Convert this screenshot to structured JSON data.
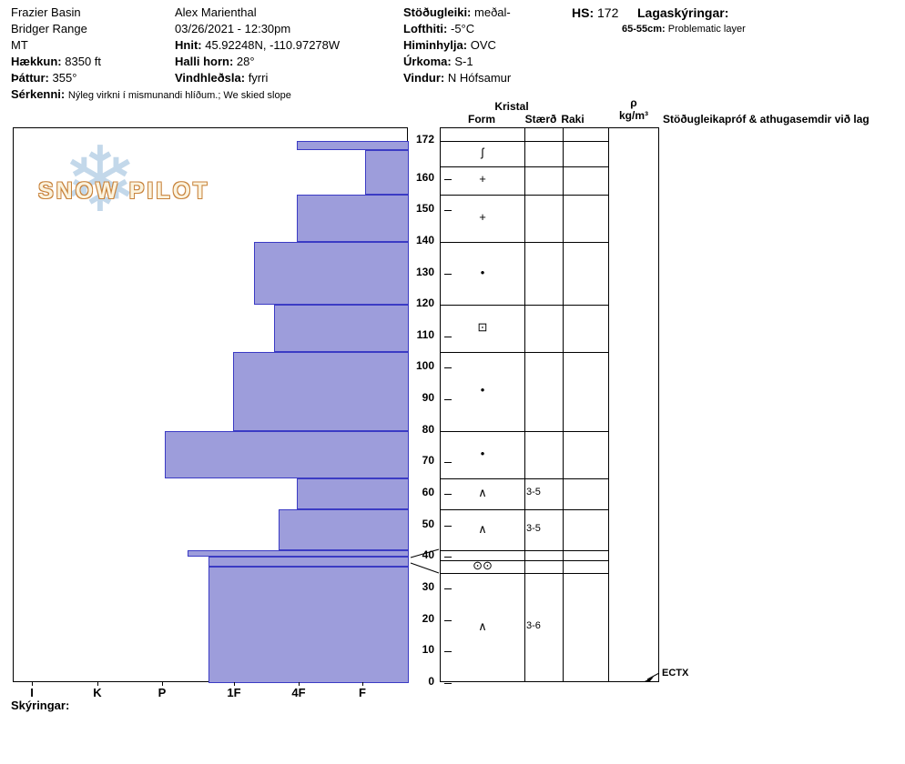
{
  "header": {
    "col1": {
      "site": "Frazier Basin",
      "range": "Bridger Range",
      "state": "MT",
      "elevation_label": "Hækkun:",
      "elevation_value": "8350 ft",
      "aspect_label": "Þáttur:",
      "aspect_value": "355°",
      "notes_label": "Sérkenni:",
      "notes_value": "Nýleg virkni í mismunandi hlíðum.; We skied slope"
    },
    "col2": {
      "observer": "Alex Marienthal",
      "datetime": "03/26/2021 - 12:30pm",
      "coords_label": "Hnit:",
      "coords_value": "45.92248N, -110.97278W",
      "slope_label": "Halli horn:",
      "slope_value": "28°",
      "windloading_label": "Vindhleðsla:",
      "windloading_value": "fyrri"
    },
    "col3": {
      "stability_label": "Stöðugleiki:",
      "stability_value": "meðal-",
      "airtemp_label": "Lofthiti:",
      "airtemp_value": "-5°C",
      "sky_label": "Himinhylja:",
      "sky_value": "OVC",
      "precip_label": "Úrkoma:",
      "precip_value": "S-1",
      "wind_label": "Vindur:",
      "wind_value": "N Hófsamur"
    },
    "hs_label": "HS:",
    "hs_value": "172",
    "layer_notes_label": "Lagaskýringar:",
    "layer_note_depth": "65-55cm:",
    "layer_note_text": "Problematic layer"
  },
  "logo": {
    "text": "SNOW PILOT",
    "flake": "❄"
  },
  "axis": {
    "hardness_labels": [
      "I",
      "K",
      "P",
      "1F",
      "4F",
      "F"
    ],
    "depth_labels": [
      172,
      160,
      150,
      140,
      130,
      120,
      110,
      100,
      90,
      80,
      70,
      60,
      50,
      40,
      30,
      20,
      10,
      0
    ]
  },
  "table": {
    "kristal_header": "Kristal",
    "form_header": "Form",
    "size_header": "Stærð",
    "raki_header": "Raki",
    "density_header_1": "ρ",
    "density_header_2": "kg/m³",
    "comments_header": "Stöðugleikapróf & athugasemdir við lag",
    "test_label": "ECTX"
  },
  "footer": {
    "legend_label": "Skýringar:"
  },
  "chart_data": {
    "type": "snow-profile",
    "title": "Snow pit hardness profile, Frazier Basin 03/26/2021",
    "total_depth_cm": 172,
    "hardness_scale": [
      "I",
      "K",
      "P",
      "1F",
      "4F",
      "F"
    ],
    "depth_axis_cm": [
      172,
      160,
      150,
      140,
      130,
      120,
      110,
      100,
      90,
      80,
      70,
      60,
      50,
      40,
      30,
      20,
      10,
      0
    ],
    "layers": [
      {
        "from_cm": 172,
        "to_cm": 169,
        "hardness": "4F",
        "hardness_frac": 0.717
      },
      {
        "from_cm": 169,
        "to_cm": 155,
        "hardness": "F",
        "hardness_frac": 0.889
      },
      {
        "from_cm": 155,
        "to_cm": 140,
        "hardness": "4F",
        "hardness_frac": 0.717
      },
      {
        "from_cm": 140,
        "to_cm": 120,
        "hardness": "1F-4F",
        "hardness_frac": 0.608
      },
      {
        "from_cm": 120,
        "to_cm": 105,
        "hardness": "4F-",
        "hardness_frac": 0.659
      },
      {
        "from_cm": 105,
        "to_cm": 80,
        "hardness": "1F",
        "hardness_frac": 0.555
      },
      {
        "from_cm": 80,
        "to_cm": 65,
        "hardness": "P",
        "hardness_frac": 0.382
      },
      {
        "from_cm": 65,
        "to_cm": 55,
        "hardness": "4F",
        "hardness_frac": 0.717
      },
      {
        "from_cm": 55,
        "to_cm": 42,
        "hardness": "4F-",
        "hardness_frac": 0.67
      },
      {
        "from_cm": 42,
        "to_cm": 40,
        "hardness": "P-1F",
        "hardness_frac": 0.44
      },
      {
        "from_cm": 40,
        "to_cm": 37,
        "hardness": "1F+",
        "hardness_frac": 0.493
      },
      {
        "from_cm": 37,
        "to_cm": 0,
        "hardness": "1F+",
        "hardness_frac": 0.493
      }
    ],
    "grain_rows": [
      {
        "from_cm": 172,
        "to_cm": 164,
        "form_symbol": "ʃ",
        "form_name": "decomposing-fragments",
        "size_mm": ""
      },
      {
        "from_cm": 164,
        "to_cm": 155,
        "form_symbol": "+",
        "form_name": "precipitation-particles",
        "size_mm": ""
      },
      {
        "from_cm": 155,
        "to_cm": 140,
        "form_symbol": "+",
        "form_name": "precipitation-particles",
        "size_mm": ""
      },
      {
        "from_cm": 140,
        "to_cm": 120,
        "form_symbol": "•",
        "form_name": "rounded-grains",
        "size_mm": ""
      },
      {
        "from_cm": 120,
        "to_cm": 105,
        "form_symbol": "⊡",
        "form_name": "faceted-crystals",
        "size_mm": ""
      },
      {
        "from_cm": 105,
        "to_cm": 80,
        "form_symbol": "•",
        "form_name": "rounded-grains",
        "size_mm": ""
      },
      {
        "from_cm": 80,
        "to_cm": 65,
        "form_symbol": "•",
        "form_name": "rounded-grains",
        "size_mm": ""
      },
      {
        "from_cm": 65,
        "to_cm": 55,
        "form_symbol": "∧",
        "form_name": "depth-hoar",
        "size_mm": "3-5"
      },
      {
        "from_cm": 55,
        "to_cm": 42,
        "form_symbol": "∧",
        "form_name": "depth-hoar",
        "size_mm": "3-5"
      },
      {
        "from_cm": 42,
        "to_cm": 39,
        "form_symbol": "",
        "form_name": "",
        "size_mm": ""
      },
      {
        "from_cm": 39,
        "to_cm": 35,
        "form_symbol": "⊙⊙",
        "form_name": "buried-surface-hoar",
        "size_mm": ""
      },
      {
        "from_cm": 35,
        "to_cm": 0,
        "form_symbol": "∧",
        "form_name": "depth-hoar",
        "size_mm": "3-6"
      }
    ],
    "stability_tests": [
      {
        "result": "ECTX",
        "depth_cm": 0
      }
    ],
    "colors": {
      "bar_fill": "#9d9ddb",
      "bar_stroke": "#3b3bc4"
    }
  }
}
